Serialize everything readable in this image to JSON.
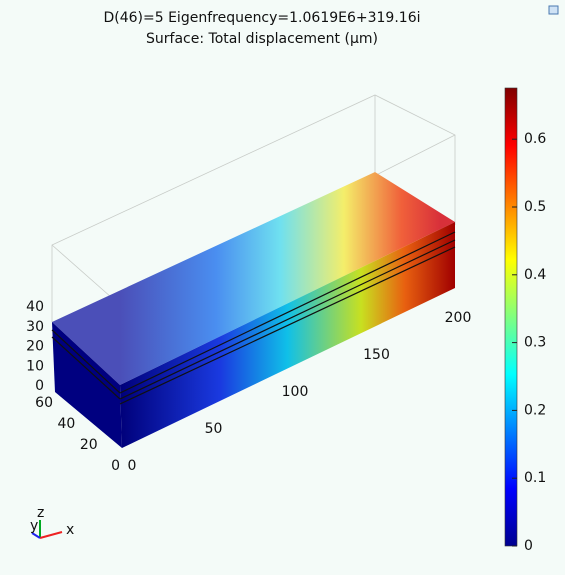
{
  "title": "D(46)=5 Eigenfrequency=1.0619E6+319.16i",
  "subtitle": "Surface: Total displacement (µm)",
  "axes": {
    "z_ticks": [
      0,
      10,
      20,
      30,
      40
    ],
    "y_ticks": [
      0,
      20,
      40,
      60
    ],
    "x_ticks": [
      0,
      50,
      100,
      150,
      200
    ]
  },
  "colorbar": {
    "ticks": [
      0,
      0.1,
      0.2,
      0.3,
      0.4,
      0.5,
      0.6
    ]
  },
  "triad": {
    "y": "y",
    "z": "z",
    "x": "x"
  }
}
